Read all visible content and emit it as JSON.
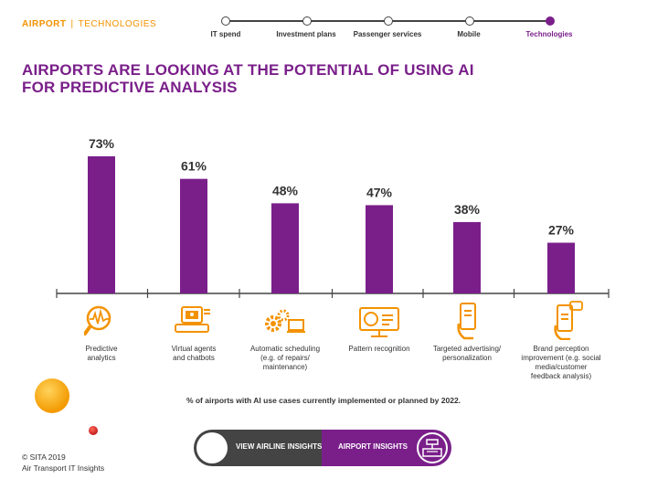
{
  "breadcrumb": {
    "section": "AIRPORT",
    "page": "TECHNOLOGIES"
  },
  "progress_steps": [
    {
      "label": "IT spend",
      "active": false
    },
    {
      "label": "Investment plans",
      "active": false
    },
    {
      "label": "Passenger services",
      "active": false
    },
    {
      "label": "Mobile",
      "active": false
    },
    {
      "label": "Technologies",
      "active": true
    }
  ],
  "title_line1": "AIRPORTS ARE LOOKING AT THE POTENTIAL OF USING AI",
  "title_line2": "FOR PREDICTIVE ANALYSIS",
  "colors": {
    "accent": "#7a1f8a",
    "orange": "#f39200",
    "dark": "#444444"
  },
  "chart_data": {
    "type": "bar",
    "categories": [
      "Predictive analytics",
      "Virtual agents and chatbots",
      "Automatic scheduling (e.g. of repairs/ maintenance)",
      "Pattern recognition",
      "Targeted advertising/ personalization",
      "Brand perception improvement (e.g. social media/customer feedback analysis)"
    ],
    "values": [
      73,
      61,
      48,
      47,
      38,
      27
    ],
    "value_labels": [
      "73%",
      "61%",
      "48%",
      "47%",
      "38%",
      "27%"
    ],
    "ylim": [
      0,
      100
    ],
    "grid": false,
    "bar_color": "#7a1f8a",
    "icons": [
      "analytics-icon",
      "chatbot-icon",
      "gears-icon",
      "monitor-icon",
      "smartphone-icon",
      "feedback-phone-icon"
    ]
  },
  "captions": [
    [
      "Predictive",
      "analytics"
    ],
    [
      "Virtual agents",
      "and chatbots"
    ],
    [
      "Automatic scheduling",
      "(e.g. of repairs/",
      "maintenance)"
    ],
    [
      "Pattern recognition"
    ],
    [
      "Targeted advertising/",
      "personalization"
    ],
    [
      "Brand perception",
      "improvement (e.g. social",
      "media/customer",
      "feedback analysis)"
    ]
  ],
  "footnote": "% of airports with AI use cases currently implemented or planned by 2022.",
  "copyright_line1": "© SITA 2019",
  "copyright_line2": "Air Transport IT Insights",
  "nav": {
    "left_label": "VIEW AIRLINE INSIGHTS",
    "right_label": "AIRPORT INSIGHTS"
  }
}
